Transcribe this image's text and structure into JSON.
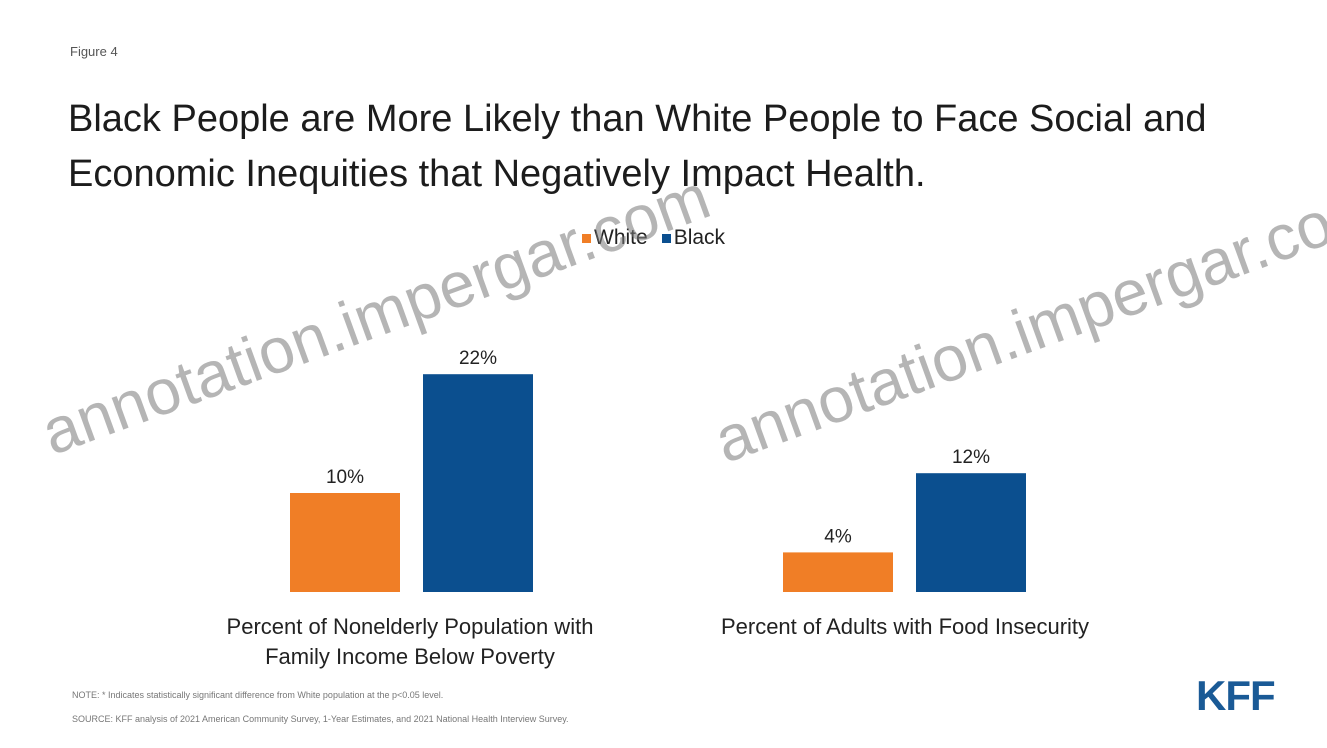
{
  "figure_label": "Figure 4",
  "chart_data": {
    "type": "bar",
    "title": "Black People are More Likely than White People to Face Social and Economic Inequities that Negatively Impact Health.",
    "categories": [
      "Percent of Nonelderly Population with Family Income Below Poverty",
      "Percent of Adults with Food Insecurity"
    ],
    "series": [
      {
        "name": "White",
        "values": [
          10,
          4
        ],
        "labels": [
          "10%",
          "4%"
        ],
        "color": "#f07e26"
      },
      {
        "name": "Black",
        "values": [
          22,
          12
        ],
        "labels": [
          "22%",
          "12%"
        ],
        "color": "#0b4f8f"
      }
    ],
    "legend_position": "top-center",
    "grid": false
  },
  "labels": {
    "category_0_line1": "Percent of Nonelderly Population with",
    "category_0_line2": "Family Income Below Poverty",
    "category_1_line1": "Percent of Adults with Food Insecurity"
  },
  "footnotes": {
    "note": "NOTE: * Indicates statistically significant difference from White population at the p<0.05 level.",
    "source": "SOURCE: KFF analysis of 2021 American Community Survey, 1-Year Estimates, and 2021 National Health Interview Survey."
  },
  "logo": "KFF",
  "watermark": "annotation.impergar.com"
}
